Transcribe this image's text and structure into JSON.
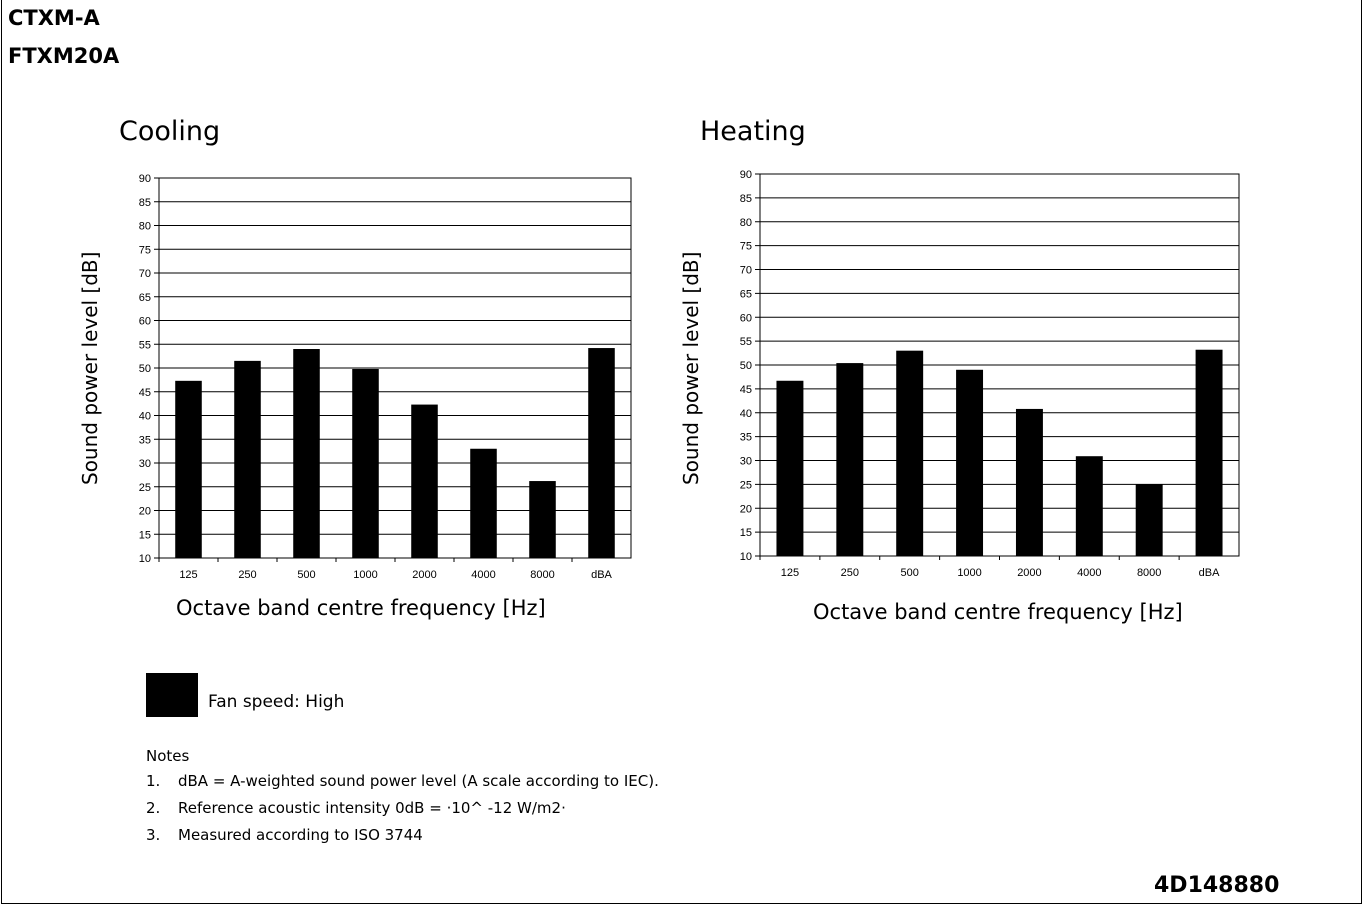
{
  "header": {
    "series": "CTXM-A",
    "model": "FTXM20A",
    "doc_id": "4D148880"
  },
  "legend": {
    "label": "Fan speed: High",
    "color": "#000000"
  },
  "notes": {
    "title": "Notes",
    "items": [
      {
        "num": "1.",
        "text": "dBA = A-weighted sound power level (A scale according to IEC)."
      },
      {
        "num": "2.",
        "text": "Reference acoustic intensity 0dB = ·10^ -12 W/m2·"
      },
      {
        "num": "3.",
        "text": "Measured according to ISO 3744"
      }
    ]
  },
  "chart_data": [
    {
      "type": "bar",
      "title": "Cooling",
      "xlabel": "Octave band centre frequency [Hz]",
      "ylabel": "Sound power level [dB]",
      "categories": [
        "125",
        "250",
        "500",
        "1000",
        "2000",
        "4000",
        "8000",
        "dBA"
      ],
      "series": [
        {
          "name": "Fan speed: High",
          "values": [
            47.3,
            51.5,
            54.0,
            49.8,
            42.3,
            33.0,
            26.2,
            54.2
          ]
        }
      ],
      "ylim": [
        10,
        90
      ],
      "ytick_step": 5,
      "grid": true,
      "bar_color": "#000000"
    },
    {
      "type": "bar",
      "title": "Heating",
      "xlabel": "Octave band centre frequency [Hz]",
      "ylabel": "Sound power level [dB]",
      "categories": [
        "125",
        "250",
        "500",
        "1000",
        "2000",
        "4000",
        "8000",
        "dBA"
      ],
      "series": [
        {
          "name": "Fan speed: High",
          "values": [
            46.7,
            50.4,
            53.0,
            49.0,
            40.8,
            30.9,
            25.0,
            53.2
          ]
        }
      ],
      "ylim": [
        10,
        90
      ],
      "ytick_step": 5,
      "grid": true,
      "bar_color": "#000000"
    }
  ]
}
